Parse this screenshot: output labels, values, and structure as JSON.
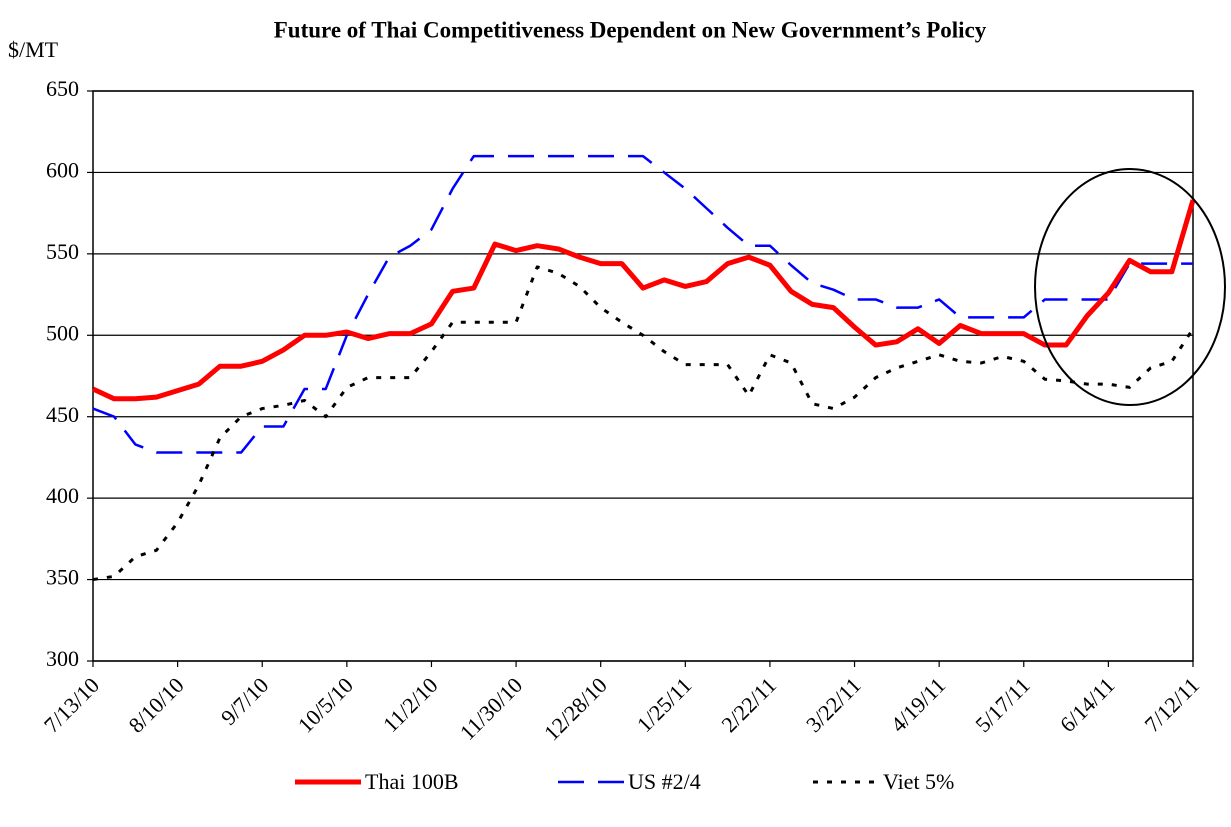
{
  "chart_data": {
    "type": "line",
    "title": "Future of Thai Competitiveness Dependent on New Government’s Policy",
    "y_label": "$/MT",
    "categories": [
      "7/13/10",
      null,
      null,
      null,
      "8/10/10",
      null,
      null,
      null,
      "9/7/10",
      null,
      null,
      null,
      "10/5/10",
      null,
      null,
      null,
      "11/2/10",
      null,
      null,
      null,
      "11/30/10",
      null,
      null,
      null,
      "12/28/10",
      null,
      null,
      null,
      "1/25/11",
      null,
      null,
      null,
      "2/22/11",
      null,
      null,
      null,
      "3/22/11",
      null,
      null,
      null,
      "4/19/11",
      null,
      null,
      null,
      "5/17/11",
      null,
      null,
      null,
      "6/14/11",
      null,
      null,
      null,
      "7/12/11"
    ],
    "series": [
      {
        "name": "Thai 100B",
        "color": "#ff0000",
        "style": "solid",
        "values": [
          467,
          461,
          461,
          462,
          466,
          470,
          481,
          481,
          484,
          491,
          500,
          500,
          502,
          498,
          501,
          501,
          507,
          527,
          529,
          556,
          552,
          555,
          553,
          548,
          544,
          544,
          529,
          534,
          530,
          533,
          544,
          548,
          543,
          527,
          519,
          517,
          505,
          494,
          496,
          504,
          495,
          506,
          501,
          501,
          501,
          494,
          494,
          512,
          526,
          546,
          539,
          539,
          583
        ]
      },
      {
        "name": "US #2/4",
        "color": "#0000ff",
        "style": "dashed",
        "values": [
          455,
          450,
          433,
          428,
          428,
          428,
          428,
          428,
          444,
          444,
          467,
          467,
          500,
          525,
          548,
          555,
          565,
          590,
          610,
          610,
          610,
          610,
          610,
          610,
          610,
          610,
          610,
          600,
          590,
          578,
          566,
          555,
          555,
          543,
          532,
          528,
          522,
          522,
          517,
          517,
          522,
          511,
          511,
          511,
          511,
          522,
          522,
          522,
          522,
          544,
          544,
          544,
          544
        ]
      },
      {
        "name": "Viet 5%",
        "color": "#000000",
        "style": "dotted",
        "values": [
          350,
          352,
          364,
          368,
          385,
          408,
          437,
          450,
          455,
          457,
          460,
          450,
          468,
          474,
          474,
          474,
          490,
          508,
          508,
          508,
          508,
          542,
          538,
          530,
          517,
          508,
          500,
          490,
          482,
          482,
          482,
          463,
          488,
          483,
          458,
          455,
          462,
          474,
          480,
          484,
          488,
          484,
          483,
          487,
          484,
          473,
          472,
          470,
          470,
          468,
          480,
          484,
          504
        ]
      }
    ],
    "ylim": [
      300,
      650
    ],
    "yticks": [
      300,
      350,
      400,
      450,
      500,
      550,
      600,
      650
    ],
    "grid": true,
    "legend": "bottom"
  }
}
